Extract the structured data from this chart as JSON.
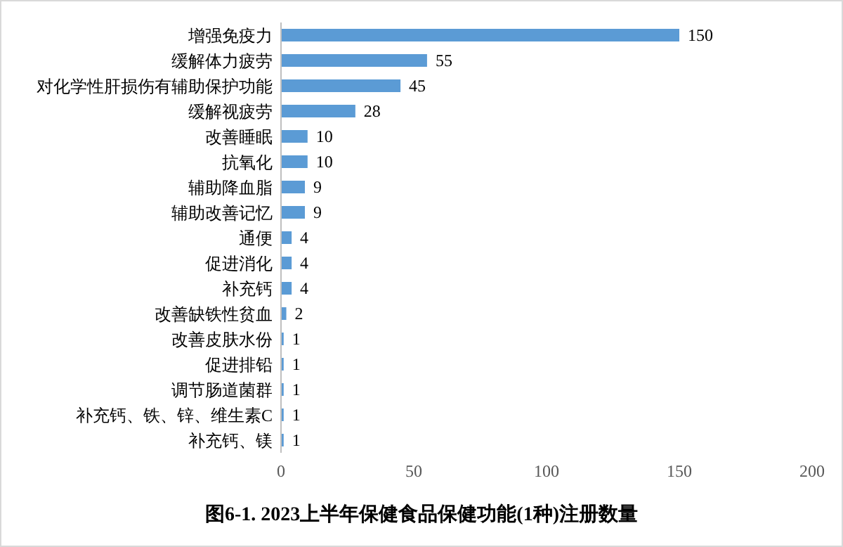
{
  "chart_data": {
    "type": "bar",
    "orientation": "horizontal",
    "title": "图6-1. 2023上半年保健食品保健功能(1种)注册数量",
    "categories": [
      "增强免疫力",
      "缓解体力疲劳",
      "对化学性肝损伤有辅助保护功能",
      "缓解视疲劳",
      "改善睡眠",
      "抗氧化",
      "辅助降血脂",
      "辅助改善记忆",
      "通便",
      "促进消化",
      "补充钙",
      "改善缺铁性贫血",
      "改善皮肤水份",
      "促进排铅",
      "调节肠道菌群",
      "补充钙、铁、锌、维生素C",
      "补充钙、镁"
    ],
    "values": [
      150,
      55,
      45,
      28,
      10,
      10,
      9,
      9,
      4,
      4,
      4,
      2,
      1,
      1,
      1,
      1,
      1
    ],
    "color": "#5b9bd5",
    "xlim": [
      0,
      200
    ],
    "xticks": [
      0,
      50,
      100,
      150,
      200
    ],
    "data_labels": true
  }
}
